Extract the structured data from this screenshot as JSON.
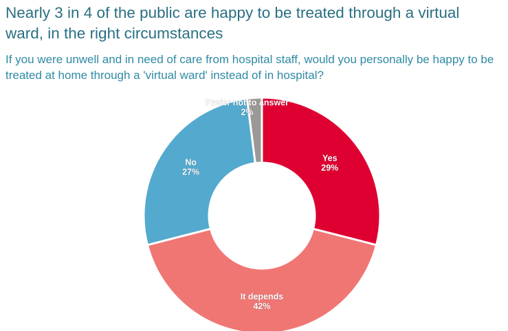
{
  "header": {
    "title": "Nearly 3 in 4 of the public are happy to be treated through a virtual ward, in the right circumstances",
    "subtitle": "If you were unwell and in need of care from hospital staff, would you personally be happy to be treated at home through a 'virtual ward' instead of in hospital?"
  },
  "chart_data": {
    "type": "pie",
    "donut": true,
    "categories": [
      "Yes",
      "It depends",
      "No",
      "Prefer not to answer"
    ],
    "values": [
      29,
      42,
      27,
      2
    ],
    "labels": [
      "29%",
      "42%",
      "27%",
      "2%"
    ],
    "colors": [
      "#df0032",
      "#f07674",
      "#54a9cf",
      "#9b9995"
    ],
    "start_angle_deg": 0,
    "direction": "clockwise"
  }
}
